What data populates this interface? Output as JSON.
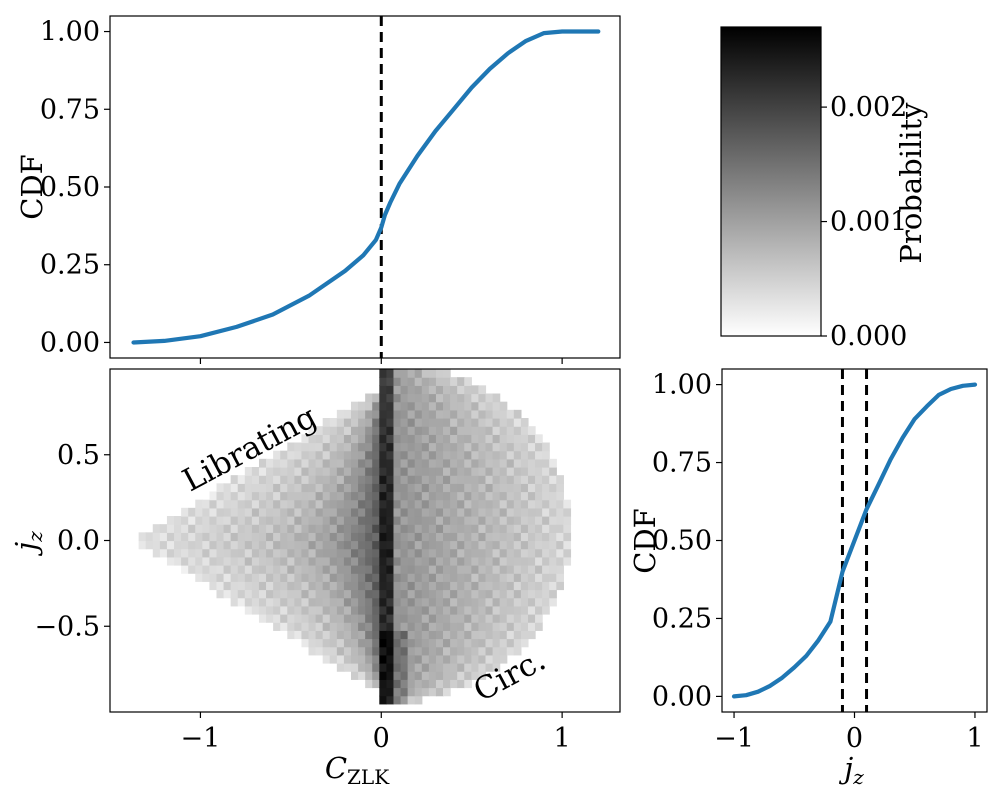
{
  "chart_data": [
    {
      "panel": "top-left",
      "type": "line",
      "ylabel": "CDF",
      "xlabel": "",
      "xlim": [
        -1.5,
        1.32
      ],
      "ylim": [
        -0.05,
        1.05
      ],
      "xticks": [
        -1,
        0,
        1
      ],
      "xticklabels_shown": false,
      "yticks": [
        0.0,
        0.25,
        0.5,
        0.75,
        1.0
      ],
      "yticklabels": [
        "0.00",
        "0.25",
        "0.50",
        "0.75",
        "1.00"
      ],
      "series": [
        {
          "x": [
            -1.37,
            -1.2,
            -1.0,
            -0.8,
            -0.6,
            -0.4,
            -0.2,
            -0.1,
            -0.03,
            0.0,
            0.02,
            0.05,
            0.1,
            0.2,
            0.3,
            0.4,
            0.5,
            0.6,
            0.7,
            0.8,
            0.9,
            1.0,
            1.1,
            1.2
          ],
          "y": [
            0.0,
            0.005,
            0.02,
            0.05,
            0.09,
            0.15,
            0.23,
            0.28,
            0.33,
            0.37,
            0.41,
            0.45,
            0.51,
            0.6,
            0.68,
            0.75,
            0.82,
            0.88,
            0.93,
            0.97,
            0.995,
            1.0,
            1.0,
            1.0
          ],
          "color": "#1f77b4"
        }
      ],
      "vlines": [
        0.0
      ]
    },
    {
      "panel": "bottom-left",
      "type": "heatmap",
      "xlabel": "C_ZLK",
      "ylabel": "j_z",
      "xlim": [
        -1.5,
        1.32
      ],
      "ylim": [
        -1.0,
        1.0
      ],
      "xticks": [
        -1,
        0,
        1
      ],
      "xticklabels": [
        "−1",
        "0",
        "1"
      ],
      "yticks": [
        -0.5,
        0.0,
        0.5
      ],
      "yticklabels": [
        "−0.5",
        "0.0",
        "0.5"
      ],
      "annotations": [
        "Librating",
        "Circ."
      ],
      "colormap": "gray_r"
    },
    {
      "panel": "colorbar",
      "type": "colorbar",
      "label": "Probability",
      "range": [
        0.0,
        0.0027
      ],
      "ticks": [
        0.0,
        0.001,
        0.002
      ],
      "ticklabels": [
        "0.000",
        "0.001",
        "0.002"
      ]
    },
    {
      "panel": "bottom-right",
      "type": "line",
      "xlabel": "j_z",
      "ylabel": "CDF",
      "xlim": [
        -1.1,
        1.1
      ],
      "ylim": [
        -0.05,
        1.05
      ],
      "xticks": [
        -1,
        0,
        1
      ],
      "xticklabels": [
        "−1",
        "0",
        "1"
      ],
      "yticks": [
        0.0,
        0.25,
        0.5,
        0.75,
        1.0
      ],
      "yticklabels": [
        "0.00",
        "0.25",
        "0.50",
        "0.75",
        "1.00"
      ],
      "series": [
        {
          "x": [
            -1.0,
            -0.9,
            -0.8,
            -0.7,
            -0.6,
            -0.5,
            -0.4,
            -0.3,
            -0.2,
            -0.1,
            0.0,
            0.1,
            0.2,
            0.3,
            0.4,
            0.5,
            0.6,
            0.7,
            0.8,
            0.9,
            1.0
          ],
          "y": [
            0.0,
            0.004,
            0.015,
            0.034,
            0.06,
            0.093,
            0.13,
            0.18,
            0.24,
            0.4,
            0.5,
            0.6,
            0.68,
            0.76,
            0.83,
            0.89,
            0.93,
            0.967,
            0.986,
            0.996,
            1.0
          ],
          "color": "#1f77b4"
        }
      ],
      "vlines": [
        -0.1,
        0.1
      ]
    }
  ],
  "labels": {
    "cdf": "CDF",
    "czlk_main": "C",
    "czlk_sub": "ZLK",
    "jz_main": "j",
    "jz_sub": "z",
    "probability": "Probability",
    "librating": "Librating",
    "circ": "Circ."
  }
}
